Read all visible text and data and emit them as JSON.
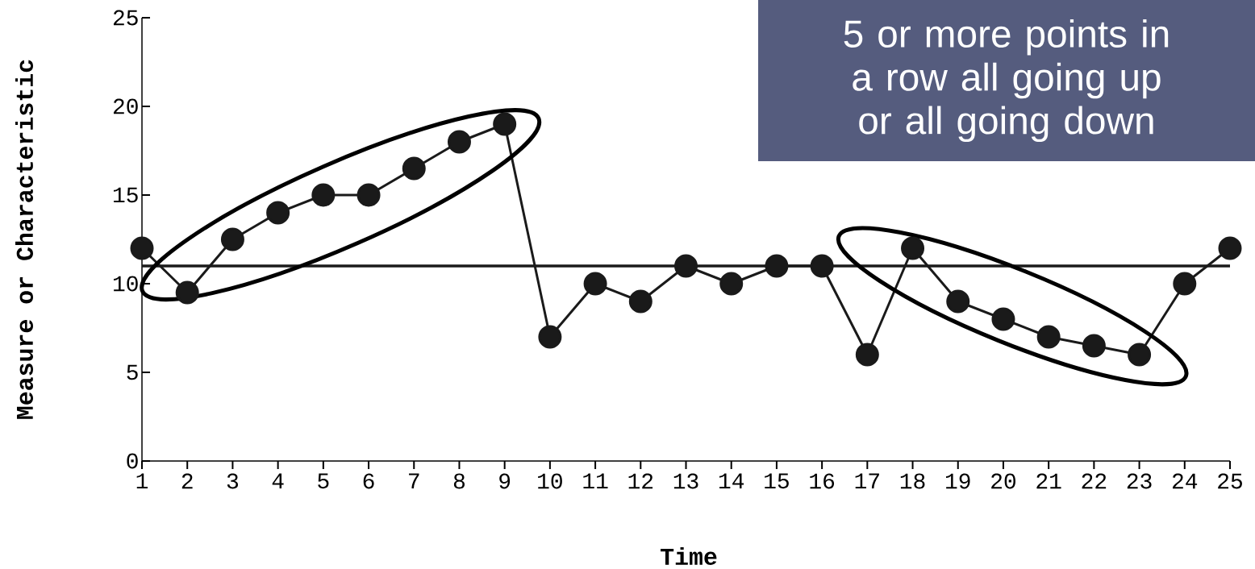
{
  "chart_data": {
    "type": "line",
    "xlabel": "Time",
    "ylabel": "Measure or Characteristic",
    "annotations": [
      "5 or more points in a row all going up or all going down"
    ],
    "x": [
      1,
      2,
      3,
      4,
      5,
      6,
      7,
      8,
      9,
      10,
      11,
      12,
      13,
      14,
      15,
      16,
      17,
      18,
      19,
      20,
      21,
      22,
      23,
      24,
      25
    ],
    "series": [
      {
        "color": "#1a1a1a",
        "values": [
          12,
          9.5,
          12.5,
          14,
          15,
          15,
          16.5,
          18,
          19,
          7,
          10,
          9,
          11,
          10,
          11,
          11,
          6,
          12,
          9,
          8,
          7,
          6.5,
          6,
          10,
          12
        ]
      }
    ],
    "xlim": [
      1,
      25
    ],
    "xticks": [
      1,
      2,
      3,
      4,
      5,
      6,
      7,
      8,
      9,
      10,
      11,
      12,
      13,
      14,
      15,
      16,
      17,
      18,
      19,
      20,
      21,
      22,
      23,
      24,
      25
    ],
    "ylim": [
      0,
      25
    ],
    "yticks": [
      0,
      5,
      10,
      15,
      20,
      25
    ],
    "ref_lines": [
      {
        "axis": "y",
        "value": 11,
        "color": "#1a1a1a"
      }
    ],
    "marker": "circle",
    "line_style": "solid",
    "grid": false
  }
}
